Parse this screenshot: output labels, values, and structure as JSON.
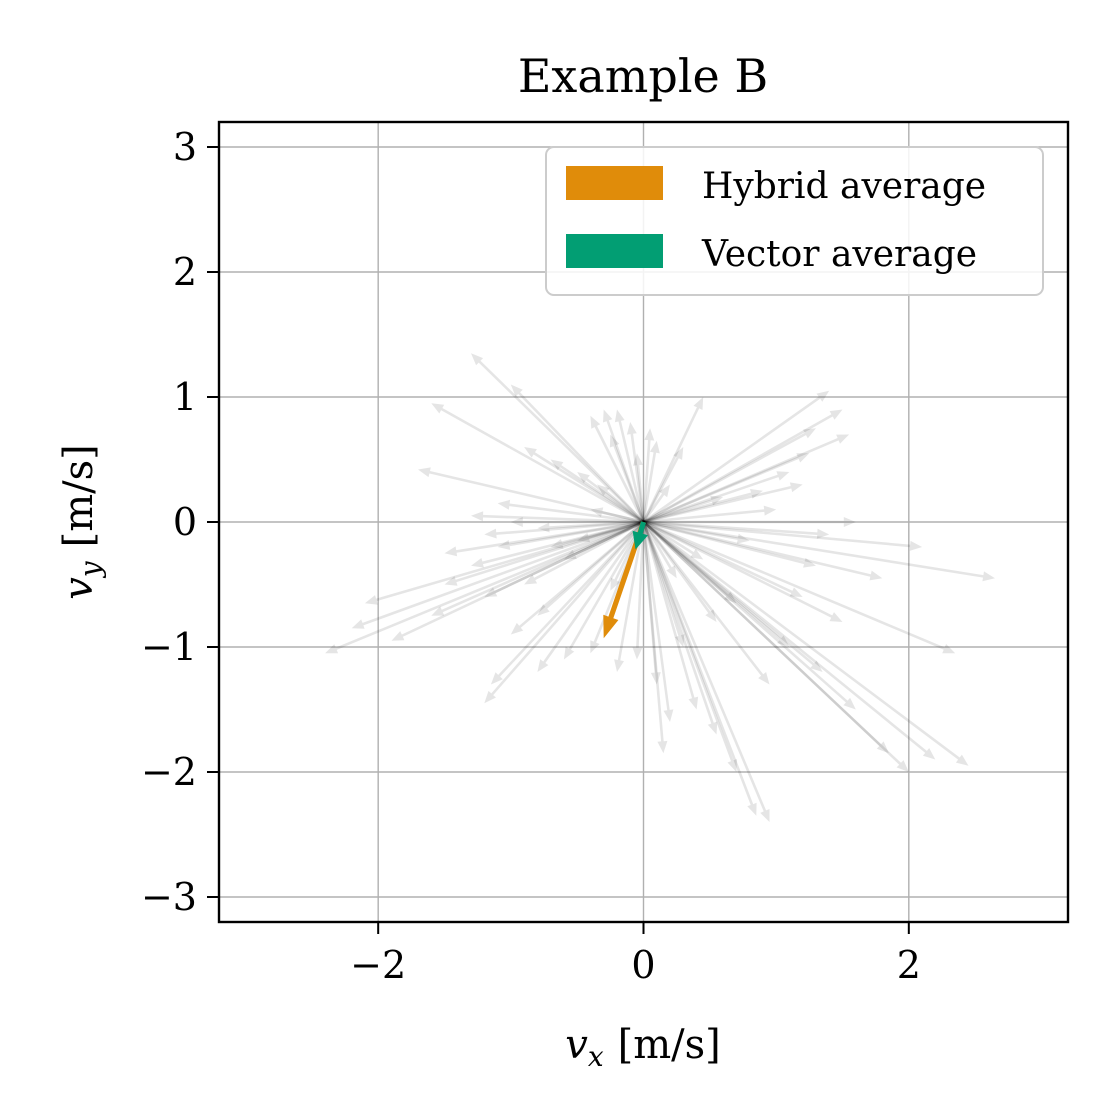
{
  "chart_data": {
    "type": "quiver",
    "title": "Example B",
    "xlabel": {
      "var": "v",
      "sub": "x",
      "unit": "[m/s]"
    },
    "ylabel": {
      "var": "v",
      "sub": "y",
      "unit": "[m/s]"
    },
    "xlim": [
      -3.2,
      3.2
    ],
    "ylim": [
      -3.2,
      3.2
    ],
    "xticks": [
      -2,
      0,
      2
    ],
    "yticks": [
      -3,
      -2,
      -1,
      0,
      1,
      2,
      3
    ],
    "grid": true,
    "legend_position": "top-right",
    "series": [
      {
        "name": "Hybrid average",
        "color": "#e08c0a",
        "vectors": [
          [
            -0.3,
            -0.93
          ]
        ]
      },
      {
        "name": "Vector average",
        "color": "#029e73",
        "vectors": [
          [
            -0.06,
            -0.22
          ]
        ]
      }
    ],
    "samples": {
      "color": "#000000",
      "vectors": [
        [
          -1.3,
          1.35
        ],
        [
          -1.0,
          1.1
        ],
        [
          -1.6,
          0.95
        ],
        [
          -0.9,
          0.6
        ],
        [
          -1.7,
          0.42
        ],
        [
          -0.7,
          0.5
        ],
        [
          -0.5,
          0.4
        ],
        [
          -1.1,
          0.15
        ],
        [
          -0.3,
          0.9
        ],
        [
          -0.2,
          0.9
        ],
        [
          -0.1,
          0.8
        ],
        [
          0.05,
          0.75
        ],
        [
          0.3,
          0.6
        ],
        [
          0.45,
          1.0
        ],
        [
          -0.4,
          0.85
        ],
        [
          -0.25,
          0.7
        ],
        [
          -0.05,
          0.55
        ],
        [
          0.1,
          0.65
        ],
        [
          1.4,
          1.05
        ],
        [
          1.5,
          0.9
        ],
        [
          1.55,
          0.7
        ],
        [
          1.3,
          0.75
        ],
        [
          1.25,
          0.55
        ],
        [
          1.2,
          0.3
        ],
        [
          1.1,
          0.4
        ],
        [
          0.9,
          0.25
        ],
        [
          0.6,
          0.2
        ],
        [
          1.6,
          0.0
        ],
        [
          1.4,
          -0.1
        ],
        [
          2.1,
          -0.2
        ],
        [
          2.65,
          -0.45
        ],
        [
          1.8,
          -0.45
        ],
        [
          1.3,
          -0.35
        ],
        [
          0.8,
          -0.15
        ],
        [
          2.35,
          -1.05
        ],
        [
          1.5,
          -0.8
        ],
        [
          1.2,
          -0.6
        ],
        [
          2.45,
          -1.95
        ],
        [
          2.2,
          -1.9
        ],
        [
          2.0,
          -2.0
        ],
        [
          1.85,
          -1.85
        ],
        [
          1.6,
          -1.5
        ],
        [
          1.35,
          -1.2
        ],
        [
          1.1,
          -1.0
        ],
        [
          0.95,
          -1.3
        ],
        [
          0.95,
          -2.4
        ],
        [
          0.85,
          -2.35
        ],
        [
          0.7,
          -2.0
        ],
        [
          0.55,
          -1.7
        ],
        [
          0.4,
          -1.5
        ],
        [
          0.2,
          -1.6
        ],
        [
          0.15,
          -1.85
        ],
        [
          0.1,
          -1.3
        ],
        [
          -0.05,
          -1.1
        ],
        [
          -0.2,
          -1.2
        ],
        [
          -0.4,
          -1.05
        ],
        [
          -0.6,
          -1.1
        ],
        [
          -0.8,
          -1.2
        ],
        [
          -1.2,
          -1.45
        ],
        [
          -1.0,
          -0.9
        ],
        [
          -0.8,
          -0.75
        ],
        [
          -1.6,
          -0.75
        ],
        [
          -2.4,
          -1.05
        ],
        [
          -2.1,
          -0.65
        ],
        [
          -1.9,
          -0.95
        ],
        [
          -2.2,
          -0.85
        ],
        [
          -1.5,
          -0.5
        ],
        [
          -1.2,
          -0.6
        ],
        [
          -0.9,
          -0.5
        ],
        [
          -1.3,
          -0.35
        ],
        [
          -1.5,
          -0.25
        ],
        [
          -1.1,
          -0.2
        ],
        [
          -0.8,
          -0.05
        ],
        [
          -1.3,
          0.05
        ],
        [
          -1.0,
          0.0
        ],
        [
          -0.6,
          -0.3
        ],
        [
          -0.5,
          -0.15
        ],
        [
          -0.4,
          0.1
        ],
        [
          -1.2,
          -0.1
        ],
        [
          -0.7,
          -0.2
        ],
        [
          0.3,
          -1.0
        ],
        [
          0.55,
          -0.8
        ],
        [
          0.7,
          -0.65
        ],
        [
          0.25,
          -0.45
        ],
        [
          -0.25,
          -0.55
        ],
        [
          -0.35,
          0.3
        ],
        [
          0.2,
          0.3
        ],
        [
          0.45,
          -0.3
        ],
        [
          1.0,
          0.1
        ],
        [
          -1.15,
          -1.3
        ]
      ]
    }
  }
}
